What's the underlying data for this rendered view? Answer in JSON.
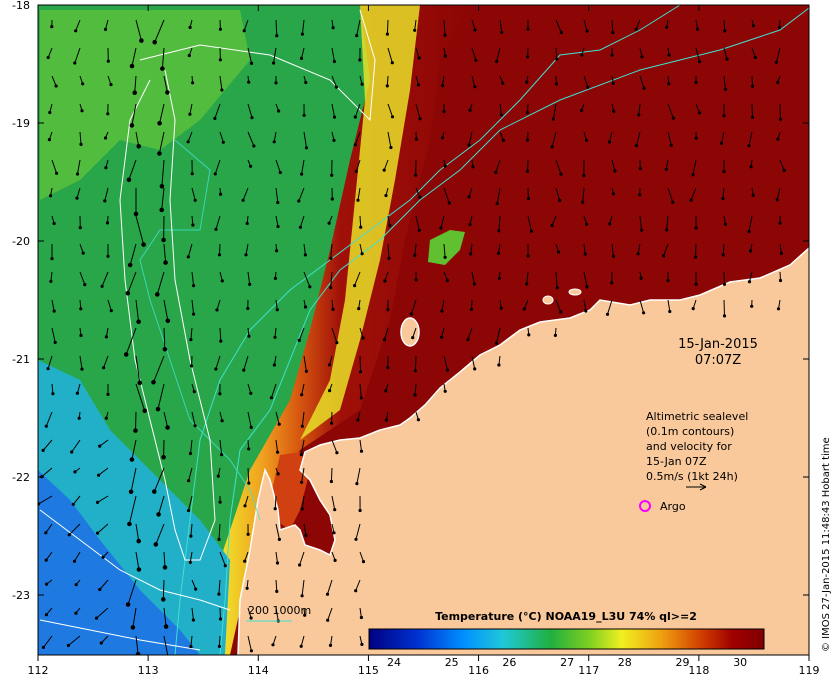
{
  "map": {
    "lon_ticks": [
      "112",
      "113",
      "114",
      "115",
      "116",
      "117",
      "118",
      "119"
    ],
    "lat_ticks": [
      "-18",
      "-19",
      "-20",
      "-21",
      "-22",
      "-23"
    ],
    "date_line1": "15-Jan-2015",
    "date_line2": "07:07Z",
    "legend_lines": [
      "Altimetric sealevel",
      "(0.1m contours)",
      "and velocity for",
      "15-Jan 07Z",
      "0.5m/s (1kt 24h)"
    ],
    "argo_label": "Argo",
    "bathy_label": "200  1000m",
    "credit": "© IMOS 27-Jan-2015 11:48:43 Hobart time"
  },
  "colorbar": {
    "title": "Temperature (°C) NOAA19_L3U 74% ql>=2",
    "ticks": [
      "24",
      "25",
      "26",
      "27",
      "28",
      "29",
      "30"
    ]
  },
  "colors": {
    "land": "#f9c99b",
    "argo": "#ff00ff",
    "bathy_contour": "#40e0d0",
    "sealevel_contour": "#ffffff"
  }
}
